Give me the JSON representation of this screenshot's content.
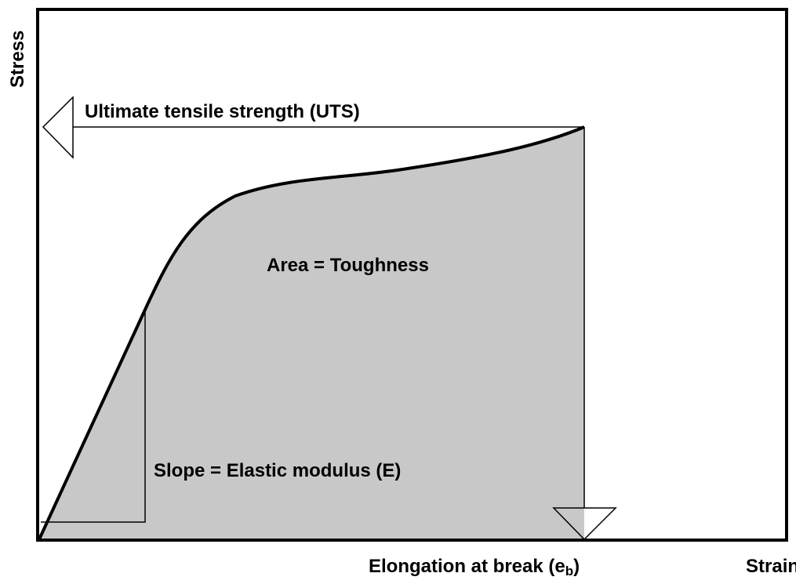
{
  "axes": {
    "y_label": "Stress",
    "x_label": "Strain"
  },
  "annotations": {
    "uts": "Ultimate tensile strength (UTS)",
    "toughness": "Area = Toughness",
    "modulus": "Slope = Elastic modulus (E)",
    "elongation": {
      "text": "Elongation at break (e",
      "subscript": "b",
      "suffix": ")"
    }
  }
}
